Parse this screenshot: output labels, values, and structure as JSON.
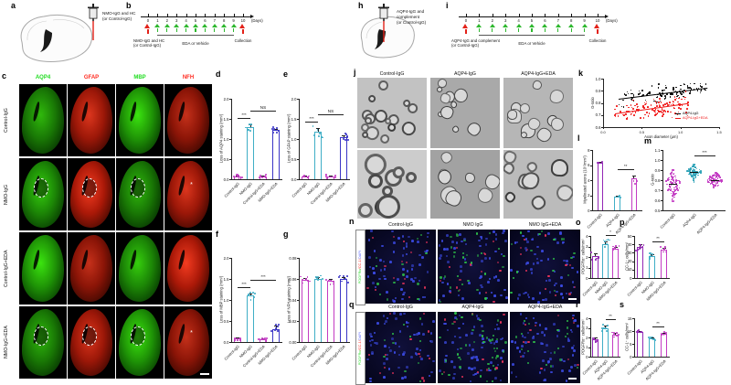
{
  "letters": {
    "a": "a",
    "b": "b",
    "c": "c",
    "d": "d",
    "e": "e",
    "f": "f",
    "g": "g",
    "h": "h",
    "i": "i",
    "j": "j",
    "k": "k",
    "l": "l",
    "m": "m",
    "n": "n",
    "o": "o",
    "p": "p",
    "q": "q",
    "r": "r",
    "s": "s"
  },
  "colors": {
    "magenta": "#C33BC3",
    "purple": "#9326B5",
    "teal": "#3FAEC6",
    "blue": "#3A35C6",
    "green_label": "#21DD21",
    "red_label": "#FF2A1F",
    "dapi_blue": "#4D5BFF",
    "arrow_green": "#2EB82E",
    "arrow_red": "#E32219"
  },
  "panel_a": {
    "injection_lines": [
      "NMO-IgG and HC",
      "(or Control-IgG)"
    ]
  },
  "panel_b": {
    "days": [
      "0",
      "1",
      "2",
      "3",
      "4",
      "5",
      "6",
      "7",
      "8",
      "9",
      "10"
    ],
    "days_unit": "(Days)",
    "injection_lines": [
      "NMO-IgG and HC",
      "(or Control-IgG)"
    ],
    "treatment": "EDA or Vehicle",
    "collection": "Collection"
  },
  "panel_c": {
    "col_headers": [
      {
        "text": "AQP4",
        "color": "#21DD21"
      },
      {
        "text": "GFAP",
        "color": "#FF2A1F"
      },
      {
        "text": "MBP",
        "color": "#21DD21"
      },
      {
        "text": "NFH",
        "color": "#FF2A1F"
      }
    ],
    "row_labels": [
      "Control-IgG",
      "NMO-IgG",
      "Control-IgG+EDA",
      "NMO-IgG+EDA"
    ],
    "lesion_rows": [
      1,
      3
    ],
    "lesion_marker": "*"
  },
  "panel_h": {
    "injection_lines": [
      "AQP4-IgG and",
      "complement",
      "(or Control-IgG)"
    ]
  },
  "panel_i": {
    "days": [
      "0",
      "1",
      "2",
      "3",
      "4",
      "5",
      "6",
      "7",
      "8",
      "9",
      "10"
    ],
    "days_unit": "(Days)",
    "injection_lines": [
      "AQP4-IgG and complement",
      "(or Control-IgG)"
    ],
    "treatment": "EDA or Vehicle",
    "collection": "Collection"
  },
  "panel_j": {
    "headers": [
      "Control-IgG",
      "AQP4-IgG",
      "AQP4-IgG+EDA"
    ]
  },
  "panel_n": {
    "headers": [
      "Control-IgG",
      "NMO IgG",
      "NMO IgG+EDA"
    ],
    "stain_parts": [
      {
        "text": "PDGFRα",
        "color": "#21DD21"
      },
      {
        "text": "/CC-1/",
        "color": "#FF2A1F"
      },
      {
        "text": "DAPI",
        "color": "#4D5BFF"
      }
    ],
    "images": [
      {
        "green": 13,
        "red": 15,
        "blue": 64
      },
      {
        "green": 30,
        "red": 16,
        "blue": 64
      },
      {
        "green": 17,
        "red": 13,
        "blue": 64
      }
    ]
  },
  "panel_q": {
    "headers": [
      "Control-IgG",
      "AQP4-IgG",
      "AQP4-IgG+EDA"
    ],
    "stain_parts": [
      {
        "text": "PDGFRα",
        "color": "#21DD21"
      },
      {
        "text": "/CC-1/",
        "color": "#FF2A1F"
      },
      {
        "text": "DAPI",
        "color": "#4D5BFF"
      }
    ],
    "images": [
      {
        "green": 11,
        "red": 14,
        "blue": 64
      },
      {
        "green": 42,
        "red": 12,
        "blue": 64
      },
      {
        "green": 19,
        "red": 12,
        "blue": 64
      }
    ]
  },
  "em_cells": [
    {
      "seed": 11,
      "rings": 16,
      "r": [
        3.5,
        8
      ],
      "bw": 2.2,
      "bg": "#c2c2c2"
    },
    {
      "seed": 22,
      "rings": 10,
      "r": [
        3,
        8
      ],
      "bw": 1.1,
      "bg": "#a9a9a9",
      "irregular": true
    },
    {
      "seed": 33,
      "rings": 12,
      "r": [
        3,
        8
      ],
      "bw": 1.5,
      "bg": "#b6b6b6",
      "irregular": true
    },
    {
      "seed": 44,
      "rings": 9,
      "r": [
        6,
        13
      ],
      "bw": 3.2,
      "bg": "#cccccc"
    },
    {
      "seed": 55,
      "rings": 8,
      "r": [
        5,
        12
      ],
      "bw": 1.4,
      "bg": "#a2a2a2",
      "irregular": true
    },
    {
      "seed": 66,
      "rings": 9,
      "r": [
        5,
        12
      ],
      "bw": 2.4,
      "bg": "#bbbbbb",
      "irregular": true
    }
  ],
  "chart_data": [
    {
      "id": "d",
      "type": "bar",
      "seed": 1,
      "ylabel": "Loss of AQP4 staining (mm²)",
      "categories": [
        "Control-IgG",
        "NMO-IgG",
        "Control-IgG+EDA",
        "NMO-IgG+EDA"
      ],
      "values": [
        0.07,
        1.3,
        0.07,
        1.22
      ],
      "errors": [
        0.02,
        0.07,
        0.02,
        0.04
      ],
      "ylim": [
        0,
        2
      ],
      "yticks": [
        "0.0",
        "0.5",
        "1.0",
        "1.5",
        "2.0"
      ],
      "colors": [
        "#C33BC3",
        "#3FAEC6",
        "#C33BC3",
        "#3A35C6"
      ],
      "sig": [
        {
          "from": 0,
          "to": 1,
          "label": "***"
        },
        {
          "from": 1,
          "to": 3,
          "label": "NS"
        }
      ]
    },
    {
      "id": "e",
      "type": "bar",
      "seed": 2,
      "ylabel": "Loss of GFAP staining (mm²)",
      "categories": [
        "Control-IgG",
        "NMO-IgG",
        "Control-IgG+EDA",
        "NMO-IgG+EDA"
      ],
      "values": [
        0.07,
        1.18,
        0.07,
        1.05
      ],
      "errors": [
        0.02,
        0.1,
        0.02,
        0.05
      ],
      "ylim": [
        0,
        2
      ],
      "yticks": [
        "0.0",
        "0.5",
        "1.0",
        "1.5",
        "2.0"
      ],
      "colors": [
        "#C33BC3",
        "#3FAEC6",
        "#C33BC3",
        "#3A35C6"
      ],
      "sig": [
        {
          "from": 0,
          "to": 1,
          "label": "***"
        },
        {
          "from": 1,
          "to": 3,
          "label": "NS"
        }
      ]
    },
    {
      "id": "f",
      "type": "bar",
      "seed": 3,
      "ylabel": "Loss of MBP staining (mm²)",
      "categories": [
        "Control-IgG",
        "NMO-IgG",
        "Control-IgG+EDA",
        "NMO-IgG+EDA"
      ],
      "values": [
        0.08,
        1.1,
        0.07,
        0.3
      ],
      "errors": [
        0.02,
        0.06,
        0.02,
        0.1
      ],
      "ylim": [
        0,
        2
      ],
      "yticks": [
        "0.0",
        "0.5",
        "1.0",
        "1.5",
        "2.0"
      ],
      "colors": [
        "#C33BC3",
        "#3FAEC6",
        "#C33BC3",
        "#3A35C6"
      ],
      "sig": [
        {
          "from": 0,
          "to": 1,
          "label": "***"
        },
        {
          "from": 1,
          "to": 3,
          "label": "***"
        }
      ]
    },
    {
      "id": "g",
      "type": "bar",
      "seed": 4,
      "ylabel": "Loss of NFH staining (mm²)",
      "categories": [
        "Control-IgG",
        "NMO-IgG",
        "Control-IgG+EDA",
        "NMO-IgG+EDA"
      ],
      "values": [
        0.059,
        0.06,
        0.058,
        0.06
      ],
      "errors": [
        0.002,
        0.002,
        0.002,
        0.002
      ],
      "ylim": [
        0,
        0.08
      ],
      "yticks": [
        "0.00",
        "0.02",
        "0.04",
        "0.06",
        "0.08"
      ],
      "colors": [
        "#C33BC3",
        "#3FAEC6",
        "#C33BC3",
        "#3A35C6"
      ],
      "sig": []
    },
    {
      "id": "k",
      "type": "scatter",
      "xlabel": "Axon diameter (μm)",
      "ylabel": "G-ratio",
      "xlim": [
        0,
        1.5
      ],
      "ylim": [
        0.6,
        1.0
      ],
      "xticks": [
        "0.0",
        "0.5",
        "1.0",
        "1.5"
      ],
      "yticks": [
        "0.6",
        "0.7",
        "0.8",
        "0.9",
        "1.0"
      ],
      "series": [
        {
          "name": "AQP4-IgG",
          "color": "#000000",
          "seed": 21,
          "n": 110,
          "intercept": 0.82,
          "slope": 0.08,
          "spread": 0.032,
          "x_range": [
            0.2,
            1.35
          ]
        },
        {
          "name": "AQP4-IgG+EDA",
          "color": "#F01414",
          "seed": 22,
          "n": 130,
          "intercept": 0.7,
          "slope": 0.09,
          "spread": 0.04,
          "x_range": [
            0.15,
            1.1
          ]
        }
      ]
    },
    {
      "id": "l",
      "type": "bar",
      "seed": 5,
      "ylabel": "Myelinated axons (10⁵/mm²)",
      "categories": [
        "Control-IgG",
        "AQP4-IgG",
        "AQP4-IgG+EDA"
      ],
      "values": [
        6.3,
        1.8,
        4.2
      ],
      "errors": [
        0.15,
        0.12,
        0.45
      ],
      "ndots": 3,
      "ylim": [
        0,
        8
      ],
      "yticks": [
        "0",
        "2",
        "4",
        "6",
        "8"
      ],
      "colors": [
        "#9326B5",
        "#3FAEC6",
        "#C33BC3"
      ],
      "sig": [
        {
          "from": 1,
          "to": 2,
          "label": "**"
        }
      ]
    },
    {
      "id": "m",
      "type": "beeswarm",
      "ylabel": "G-ratio",
      "categories": [
        "Control-IgG",
        "AQP4-IgG",
        "AQP4-IgG+EDA"
      ],
      "means": [
        0.76,
        0.88,
        0.8
      ],
      "sds": [
        0.07,
        0.035,
        0.04
      ],
      "n": [
        90,
        80,
        90
      ],
      "seeds": [
        31,
        32,
        33
      ],
      "ylim": [
        0.5,
        1.1
      ],
      "yticks": [
        "0.5",
        "0.6",
        "0.7",
        "0.8",
        "0.9",
        "1.0",
        "1.1"
      ],
      "colors": [
        "#C33BC3",
        "#2FA3B8",
        "#C33BC3"
      ],
      "sig": [
        {
          "from": 1,
          "to": 2,
          "label": "***"
        }
      ]
    },
    {
      "id": "o",
      "type": "bar",
      "seed": 6,
      "ylabel": "PDGFRα⁺ cells/mm²",
      "categories": [
        "Control-IgG",
        "NMO-IgG",
        "NMO-IgG+EDA"
      ],
      "values": [
        2.1,
        3.2,
        2.8
      ],
      "errors": [
        0.25,
        0.3,
        0.2
      ],
      "ylim": [
        0,
        4
      ],
      "yticks": [
        "0",
        "1",
        "2",
        "3",
        "4"
      ],
      "colors": [
        "#9326B5",
        "#3FAEC6",
        "#C33BC3"
      ],
      "sig": [
        {
          "from": 1,
          "to": 2,
          "label": "*"
        }
      ]
    },
    {
      "id": "p",
      "type": "bar",
      "seed": 7,
      "ylabel": "CC-1⁺ cells/mm²",
      "categories": [
        "Control-IgG",
        "NMO-IgG",
        "NMO-IgG+EDA"
      ],
      "values": [
        37,
        26,
        34
      ],
      "errors": [
        3,
        2.5,
        2
      ],
      "ylim": [
        0,
        50
      ],
      "yticks": [
        "0",
        "10",
        "20",
        "30",
        "40",
        "50"
      ],
      "colors": [
        "#9326B5",
        "#3FAEC6",
        "#C33BC3"
      ],
      "sig": [
        {
          "from": 1,
          "to": 2,
          "label": "**"
        }
      ]
    },
    {
      "id": "r",
      "type": "bar",
      "seed": 8,
      "ylabel": "PDGFRα⁺ cells/mm²",
      "categories": [
        "Control-IgG",
        "AQP4-IgG",
        "AQP4-IgG+EDA"
      ],
      "values": [
        1.8,
        3.0,
        2.3
      ],
      "errors": [
        0.2,
        0.25,
        0.2
      ],
      "ylim": [
        0,
        4
      ],
      "yticks": [
        "0",
        "1",
        "2",
        "3",
        "4"
      ],
      "colors": [
        "#9326B5",
        "#3FAEC6",
        "#C33BC3"
      ],
      "sig": [
        {
          "from": 1,
          "to": 2,
          "label": "**"
        }
      ]
    },
    {
      "id": "s",
      "type": "bar",
      "seed": 9,
      "ylabel": "CC-1⁺ cells/mm²",
      "categories": [
        "Control-IgG",
        "AQP4-IgG",
        "AQP4-IgG+EDA"
      ],
      "values": [
        9.5,
        7.0,
        9.0
      ],
      "errors": [
        0.5,
        0.5,
        0.4
      ],
      "ylim": [
        0,
        15
      ],
      "yticks": [
        "0",
        "5",
        "10",
        "15"
      ],
      "colors": [
        "#9326B5",
        "#3FAEC6",
        "#C33BC3"
      ],
      "sig": [
        {
          "from": 1,
          "to": 2,
          "label": "**"
        }
      ]
    }
  ]
}
